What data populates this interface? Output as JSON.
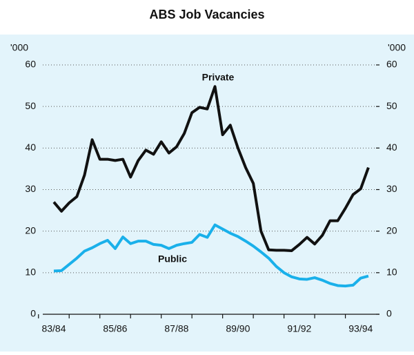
{
  "chart_data": {
    "type": "line",
    "title": "ABS Job Vacancies",
    "y_unit_label": "'000",
    "y2_unit_label": "'000",
    "categories": [
      "83/84",
      null,
      null,
      null,
      null,
      null,
      null,
      null,
      "85/86",
      null,
      null,
      null,
      null,
      null,
      null,
      null,
      "87/88",
      null,
      null,
      null,
      null,
      null,
      null,
      null,
      "89/90",
      null,
      null,
      null,
      null,
      null,
      null,
      null,
      "91/92",
      null,
      null,
      null,
      null,
      null,
      null,
      null,
      "93/94",
      null
    ],
    "series": [
      {
        "name": "Private",
        "color": "#111111",
        "values": [
          27,
          24.8,
          26.8,
          28.3,
          33.5,
          42,
          37.3,
          37.3,
          37,
          37.3,
          33,
          37,
          39.5,
          38.5,
          41.5,
          38.8,
          40.3,
          43.5,
          48.5,
          49.8,
          49.4,
          54.8,
          43.2,
          45.5,
          40,
          35.3,
          31.5,
          20,
          15.5,
          15.4,
          15.4,
          15.3,
          16.8,
          18.5,
          16.9,
          19,
          22.5,
          22.5,
          25.5,
          28.8,
          30.2,
          35.3
        ]
      },
      {
        "name": "Public",
        "color": "#1ab0ea",
        "values": [
          10.4,
          10.5,
          12,
          13.5,
          15.2,
          16,
          17,
          17.8,
          15.8,
          18.6,
          17,
          17.6,
          17.6,
          16.8,
          16.6,
          15.8,
          16.6,
          17,
          17.3,
          19.2,
          18.5,
          21.5,
          20.5,
          19.5,
          18.7,
          17.6,
          16.4,
          15,
          13.5,
          11.5,
          10,
          9,
          8.5,
          8.4,
          8.8,
          8.2,
          7.4,
          6.9,
          6.8,
          7,
          8.7,
          9.2
        ]
      }
    ],
    "ylim": [
      0,
      60
    ],
    "yticks": [
      0,
      10,
      20,
      30,
      40,
      50,
      60
    ],
    "y2lim": [
      0,
      60
    ],
    "y2ticks": [
      0,
      10,
      20,
      30,
      40,
      50,
      60
    ],
    "grid": true
  }
}
